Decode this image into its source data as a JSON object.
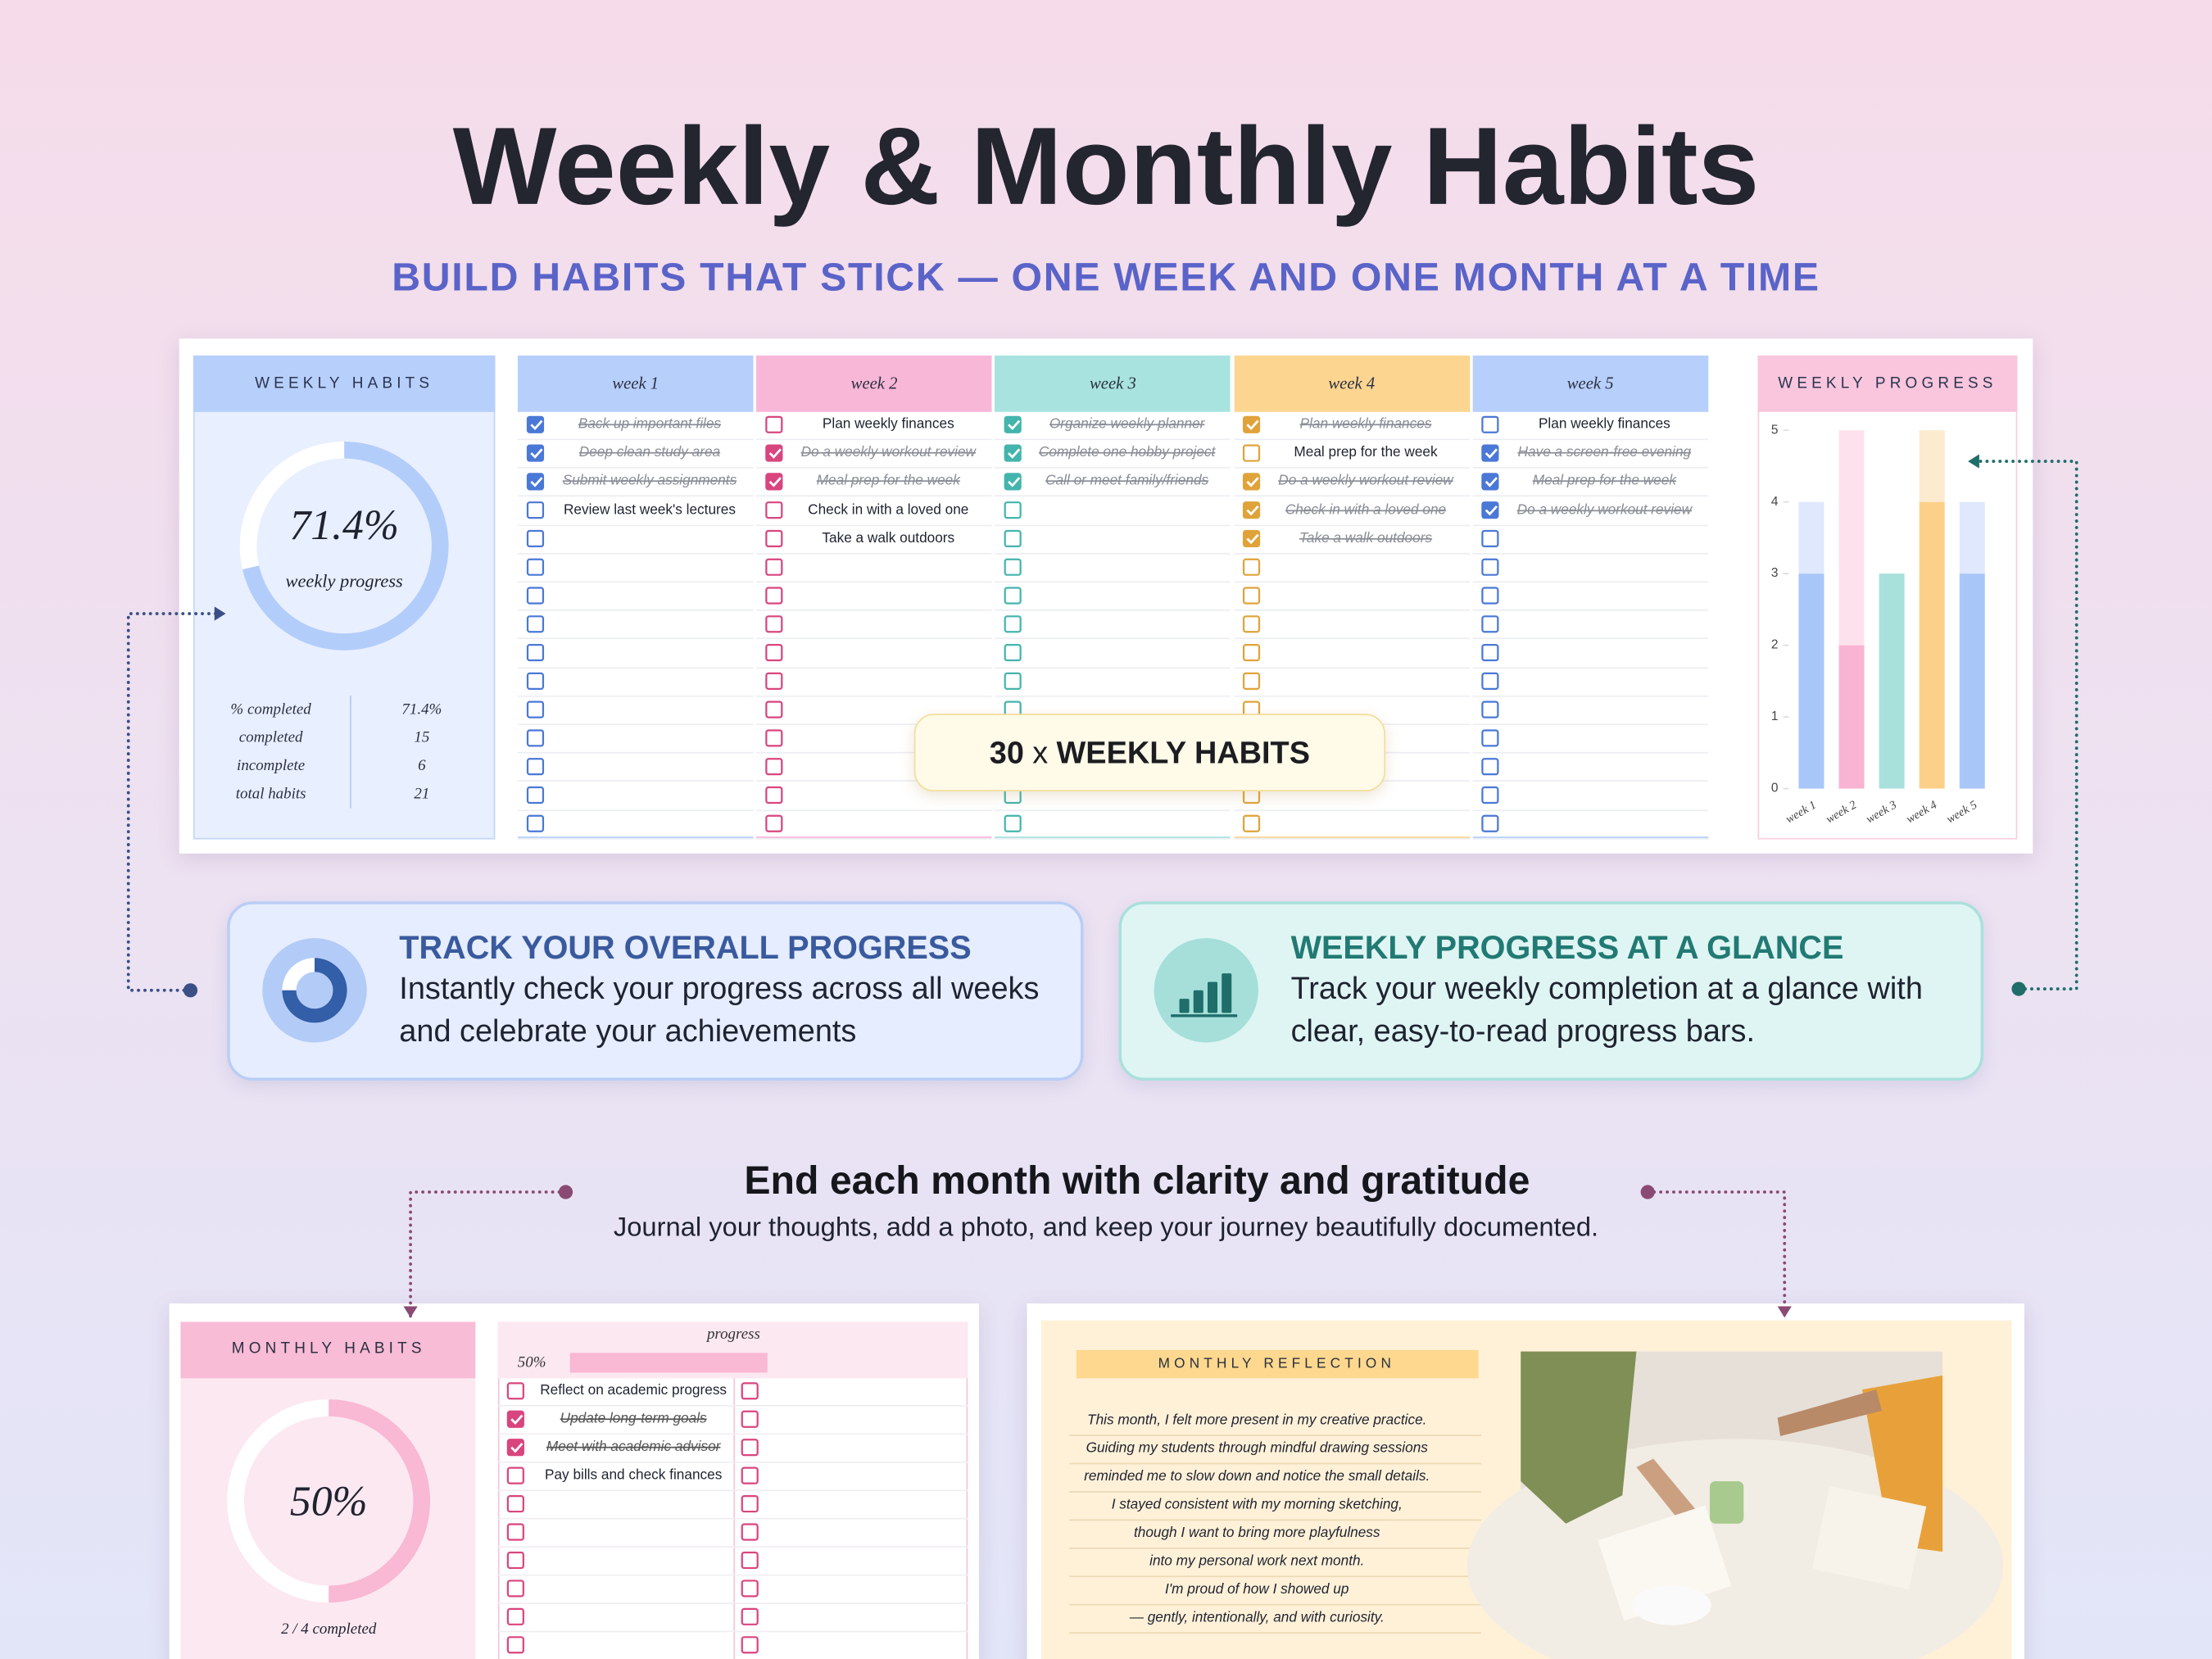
{
  "header": {
    "title": "Weekly & Monthly Habits",
    "subtitle": "BUILD HABITS THAT STICK — ONE WEEK AND ONE MONTH AT A TIME"
  },
  "weekly_sheet": {
    "summary": {
      "title": "WEEKLY HABITS",
      "ring": {
        "value": 71.4,
        "label": "71.4%"
      },
      "caption": "weekly progress",
      "stats": [
        {
          "label": "% completed",
          "value": "71.4%"
        },
        {
          "label": "completed",
          "value": 15
        },
        {
          "label": "incomplete",
          "value": 6
        },
        {
          "label": "total habits",
          "value": 21
        }
      ]
    },
    "weeks": [
      {
        "name": "week 1",
        "tasks": [
          {
            "text": "Back up important files",
            "done": true
          },
          {
            "text": "Deep clean study area",
            "done": true
          },
          {
            "text": "Submit weekly assignments",
            "done": true
          },
          {
            "text": "Review last week's lectures",
            "done": false
          }
        ]
      },
      {
        "name": "week 2",
        "tasks": [
          {
            "text": "Plan weekly finances",
            "done": false
          },
          {
            "text": "Do a weekly workout review",
            "done": true
          },
          {
            "text": "Meal prep for the week",
            "done": true
          },
          {
            "text": "Check in with a loved one",
            "done": false
          },
          {
            "text": "Take a walk outdoors",
            "done": false
          }
        ]
      },
      {
        "name": "week 3",
        "tasks": [
          {
            "text": "Organize weekly planner",
            "done": true
          },
          {
            "text": "Complete one hobby project",
            "done": true
          },
          {
            "text": "Call or meet family/friends",
            "done": true
          }
        ]
      },
      {
        "name": "week 4",
        "tasks": [
          {
            "text": "Plan weekly finances",
            "done": true
          },
          {
            "text": "Meal prep for the week",
            "done": false
          },
          {
            "text": "Do a weekly workout review",
            "done": true
          },
          {
            "text": "Check in with a loved one",
            "done": true
          },
          {
            "text": "Take a walk outdoors",
            "done": true
          }
        ]
      },
      {
        "name": "week 5",
        "tasks": [
          {
            "text": "Plan weekly finances",
            "done": false
          },
          {
            "text": "Have a screen-free evening",
            "done": true
          },
          {
            "text": "Meal prep for the week",
            "done": true
          },
          {
            "text": "Do a weekly workout review",
            "done": true
          }
        ]
      }
    ],
    "badge": {
      "count": "30",
      "times": "x",
      "label": "WEEKLY HABITS"
    },
    "progress_chart": {
      "type": "bar",
      "title": "WEEKLY PROGRESS",
      "categories": [
        "week 1",
        "week 2",
        "week 3",
        "week 4",
        "week 5"
      ],
      "series": [
        {
          "name": "completed",
          "colors": [
            "#a9c6f8",
            "#f9b3d3",
            "#a8e0dc",
            "#fdd08a",
            "#a9c6f8"
          ],
          "values": [
            3,
            2,
            3,
            4,
            3
          ]
        },
        {
          "name": "remaining",
          "colors": [
            "#dfe8fd",
            "#fde2ee",
            "#d9f3f1",
            "#fdebcf",
            "#dfe8fd"
          ],
          "values": [
            1,
            3,
            0,
            1,
            1
          ]
        }
      ],
      "ylim": [
        0,
        5
      ],
      "yticks": [
        0,
        1,
        2,
        3,
        4,
        5
      ]
    }
  },
  "features": [
    {
      "title": "TRACK YOUR OVERALL PROGRESS",
      "text": "Instantly check your progress across all weeks and celebrate your achievements"
    },
    {
      "title": "WEEKLY PROGRESS AT A GLANCE",
      "text": "Track your weekly completion at a glance with clear, easy-to-read progress bars."
    }
  ],
  "monthly_intro": {
    "title": "End each month with clarity and gratitude",
    "text": "Journal your thoughts, add a photo, and keep your journey beautifully documented."
  },
  "monthly_sheet": {
    "title": "MONTHLY HABITS",
    "ring": {
      "value": 50,
      "label": "50%"
    },
    "completed": "2 / 4 completed",
    "progress": {
      "label": "progress",
      "value": 50,
      "value_label": "50%"
    },
    "tasks": [
      {
        "text": "Reflect on academic progress",
        "done": false
      },
      {
        "text": "Update long-term goals",
        "done": true
      },
      {
        "text": "Meet with academic advisor",
        "done": true
      },
      {
        "text": "Pay bills and check finances",
        "done": false
      }
    ]
  },
  "reflection": {
    "title": "MONTHLY REFLECTION",
    "lines": [
      "This month, I felt more present in my creative practice.",
      "Guiding my students through mindful drawing sessions",
      "reminded me to slow down and notice the small details.",
      "I stayed consistent with my morning sketching,",
      "though I want to bring more playfulness",
      "into my personal work next month.",
      "I'm proud of how I showed up",
      "— gently, intentionally, and with curiosity."
    ]
  }
}
